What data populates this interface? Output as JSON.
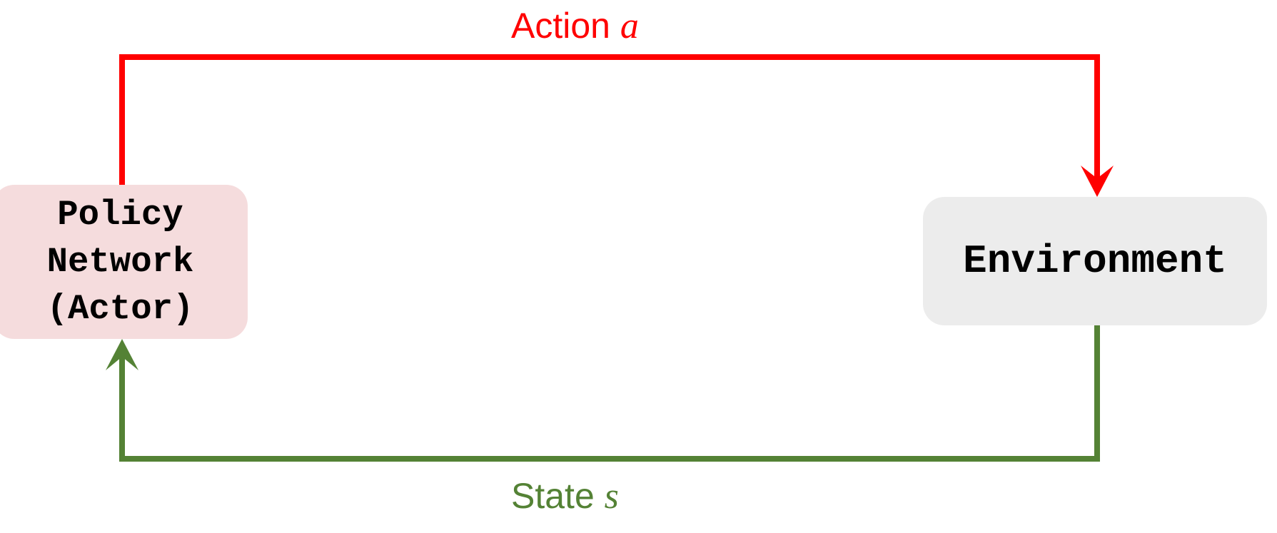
{
  "colors": {
    "action": "#ff0000",
    "state": "#548235",
    "actor_fill": "#f5dcdd",
    "environment_fill": "#ececec",
    "node_text": "#000000"
  },
  "nodes": {
    "actor": {
      "line1": "Policy",
      "line2": "Network",
      "line3": "(Actor)"
    },
    "environment": {
      "label": "Environment"
    }
  },
  "edges": {
    "action": {
      "label": "Action",
      "variable": "a"
    },
    "state": {
      "label": "State",
      "variable": "s"
    }
  }
}
